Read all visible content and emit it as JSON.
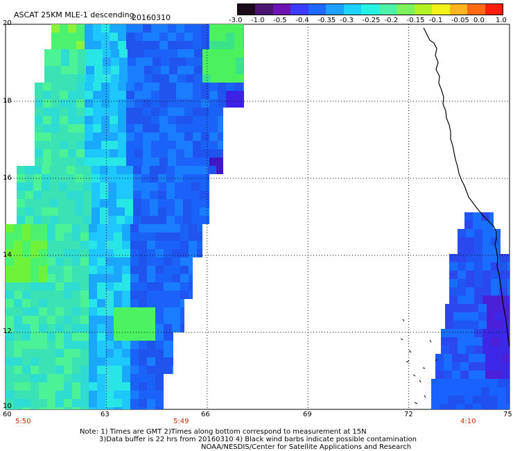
{
  "header": {
    "title": "ASCAT 25KM MLE-1 descending",
    "date": "20160310"
  },
  "colorbar": {
    "colors": [
      "#1a0a1a",
      "#4b1670",
      "#6e14b4",
      "#3c3cff",
      "#1f68ff",
      "#1ea0ff",
      "#1ed2ff",
      "#26f2e6",
      "#4cf2a8",
      "#7cf25e",
      "#b4f226",
      "#f2f21a",
      "#ffb41e",
      "#ff6a14",
      "#ff1e0a"
    ],
    "labels": [
      "-3.0",
      "-1.0",
      "-0.5",
      "-0.4",
      "-0.35",
      "-0.3",
      "-0.25",
      "-0.2",
      "-0.15",
      "-0.1",
      "-0.05",
      "0.0",
      "1.0"
    ]
  },
  "axes": {
    "y_ticks": [
      "20",
      "18",
      "16",
      "14",
      "12",
      "10"
    ],
    "x_ticks": [
      "60",
      "63",
      "66",
      "69",
      "72",
      "75"
    ],
    "pass_times": [
      "5:50",
      "5:49",
      "4:10"
    ]
  },
  "footer": {
    "line1": "Note: 1) Times are GMT 2)Times along bottom correspond to measurement at 15N",
    "line2": "3)Data buffer is 22 hrs from 20160310 4) Black wind barbs indicate possible contamination",
    "line3": "NOAA/NESDIS/Center for Satellite Applications and Research"
  }
}
